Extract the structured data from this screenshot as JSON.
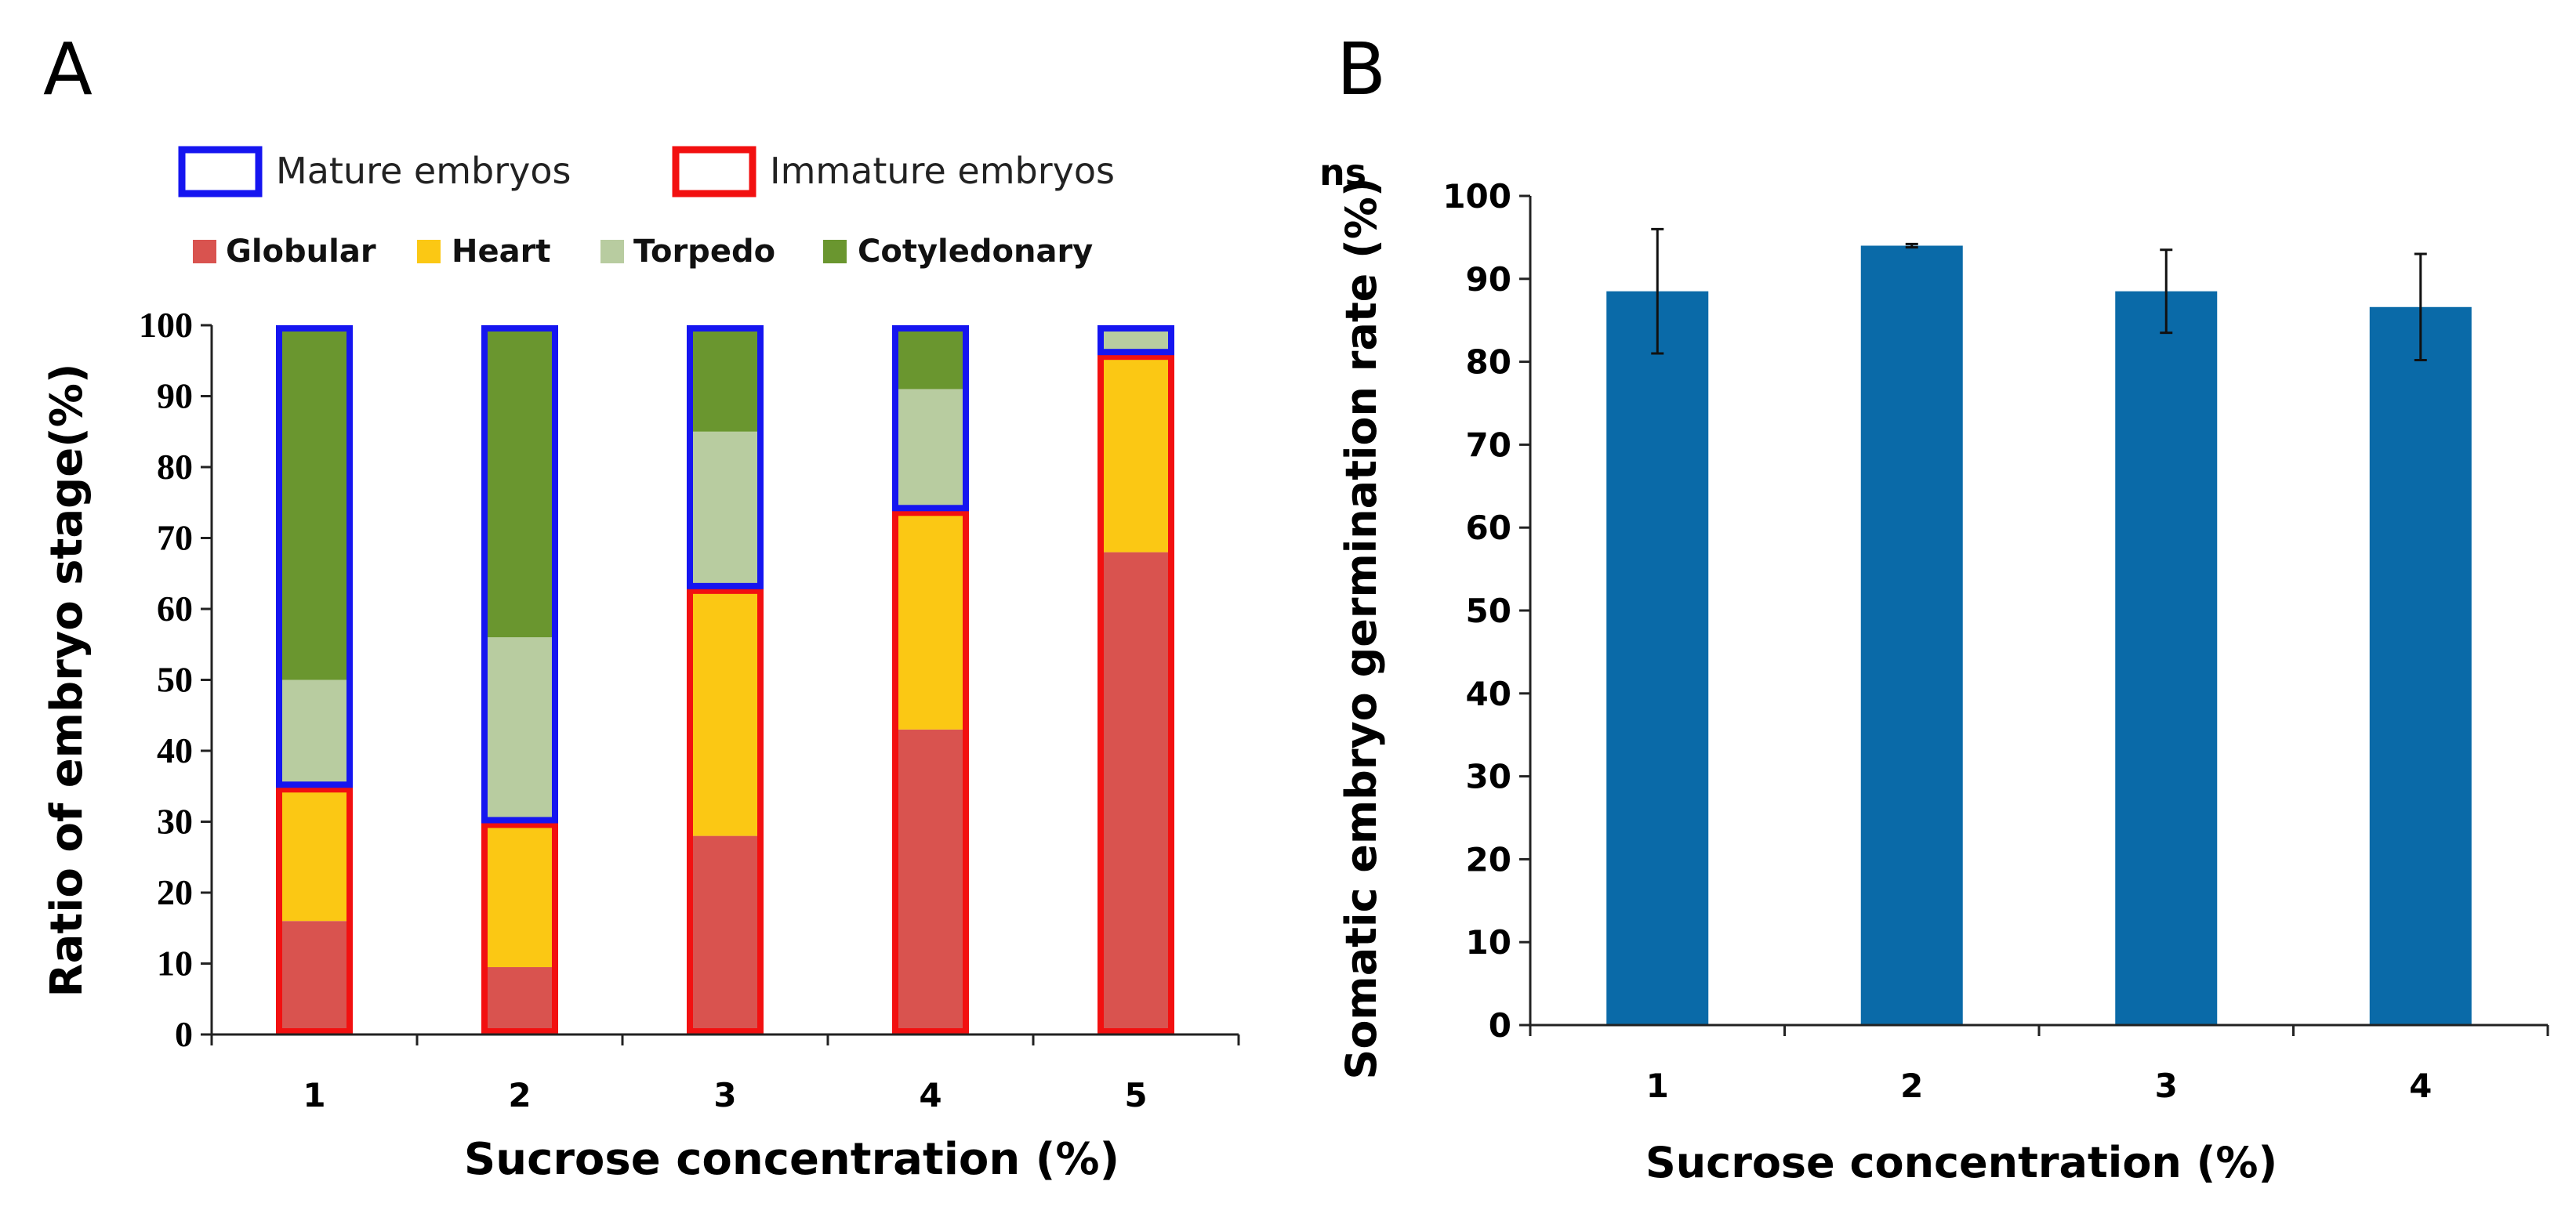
{
  "colors": {
    "globular": "#d9534f",
    "heart": "#fbc814",
    "torpedo": "#b8cca0",
    "cotyledonary": "#6a962f",
    "mature_outline": "#1515f0",
    "immature_outline": "#f21010",
    "bar_b": "#0a6aa8"
  },
  "chart_data": [
    {
      "panel": "A",
      "type": "bar",
      "stacked": true,
      "categories": [
        "1",
        "2",
        "3",
        "4",
        "5"
      ],
      "series": [
        {
          "name": "Globular",
          "key": "globular",
          "values": [
            16,
            9.5,
            28,
            43,
            68
          ]
        },
        {
          "name": "Heart",
          "key": "heart",
          "values": [
            19,
            20.5,
            35,
            31,
            28
          ]
        },
        {
          "name": "Torpedo",
          "key": "torpedo",
          "values": [
            15,
            26,
            22,
            17,
            4
          ]
        },
        {
          "name": "Cotyledonary",
          "key": "cotyledonary",
          "values": [
            50,
            44,
            15,
            9,
            0
          ]
        }
      ],
      "groups": [
        {
          "name": "Mature embryos",
          "key": "mature",
          "values": [
            65,
            70,
            37,
            26,
            4
          ]
        },
        {
          "name": "Immature embryos",
          "key": "immature",
          "values": [
            35,
            30,
            63,
            74,
            96
          ]
        }
      ],
      "xlabel": "Sucrose concentration (%)",
      "ylabel": "Ratio of embryo stage(%)",
      "ylim": [
        0,
        100
      ],
      "yticks": [
        0,
        10,
        20,
        30,
        40,
        50,
        60,
        70,
        80,
        90,
        100
      ],
      "legend_position": "top"
    },
    {
      "panel": "B",
      "type": "bar",
      "categories": [
        "1",
        "2",
        "3",
        "4"
      ],
      "values": [
        88.5,
        94,
        88.5,
        86.6
      ],
      "errors": [
        7.5,
        0.2,
        5,
        6.4
      ],
      "annotation": "ns",
      "xlabel": "Sucrose concentration (%)",
      "ylabel": "Somatic embryo germination rate (%)",
      "ylim": [
        0,
        100
      ],
      "yticks": [
        0,
        10,
        20,
        30,
        40,
        50,
        60,
        70,
        80,
        90,
        100
      ]
    }
  ]
}
